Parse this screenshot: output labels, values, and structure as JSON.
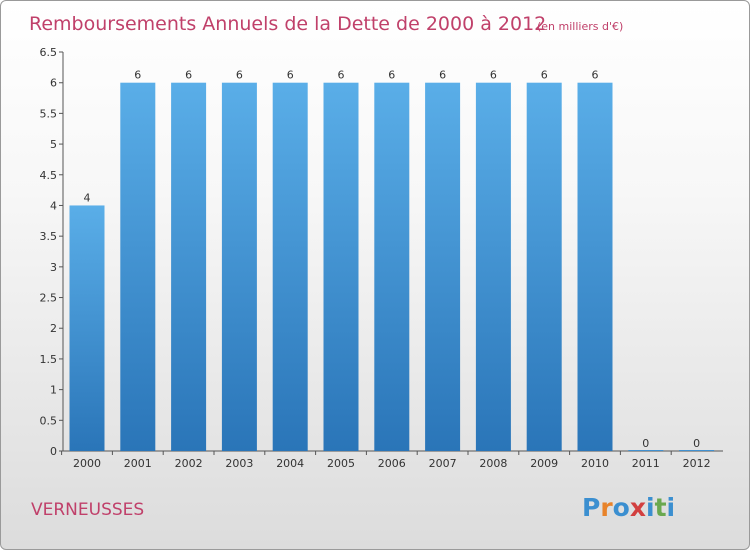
{
  "chart_data": {
    "type": "bar",
    "title": "Remboursements Annuels de la Dette de 2000 à 2012",
    "subtitle": "(en milliers d'€)",
    "categories": [
      "2000",
      "2001",
      "2002",
      "2003",
      "2004",
      "2005",
      "2006",
      "2007",
      "2008",
      "2009",
      "2010",
      "2011",
      "2012"
    ],
    "values": [
      4,
      6,
      6,
      6,
      6,
      6,
      6,
      6,
      6,
      6,
      6,
      0,
      0
    ],
    "value_labels": [
      "4",
      "6",
      "6",
      "6",
      "6",
      "6",
      "6",
      "6",
      "6",
      "6",
      "6",
      "0",
      "0"
    ],
    "ylim": [
      0,
      6.5
    ],
    "yticks": [
      "0",
      "0.5",
      "1",
      "1.5",
      "2",
      "2.5",
      "3",
      "3.5",
      "4",
      "4.5",
      "5",
      "5.5",
      "6",
      "6.5"
    ],
    "grid": false,
    "legend": "none",
    "bar_color": "#3b8fd0"
  },
  "commune": "VERNEUSSES",
  "brand": [
    "P",
    "r",
    "o",
    "x",
    "i",
    "t",
    "i"
  ]
}
